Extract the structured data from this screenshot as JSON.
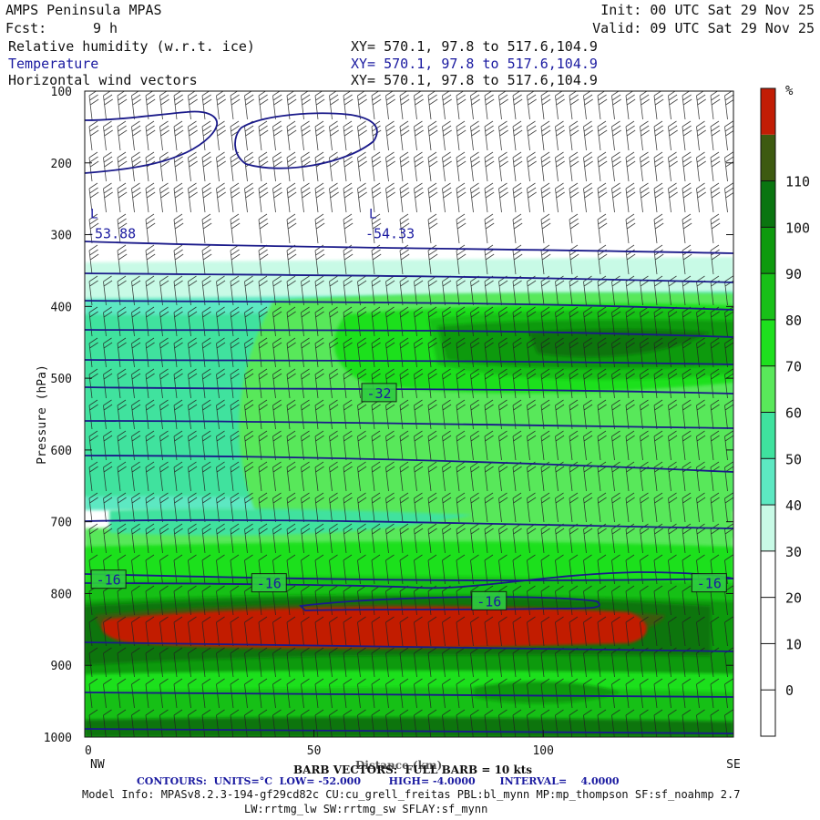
{
  "header": {
    "model": "AMPS Peninsula MPAS",
    "fcst_label": "Fcst:",
    "fcst_value": "9 h",
    "init": "Init: 00 UTC Sat 29 Nov 25",
    "valid": "Valid: 09 UTC Sat 29 Nov 25",
    "fields": [
      {
        "name": "Relative humidity (w.r.t. ice)",
        "xy": "XY= 570.1, 97.8 to 517.6,104.9"
      },
      {
        "name": "Temperature",
        "xy": "XY= 570.1, 97.8 to 517.6,104.9"
      },
      {
        "name": "Horizontal wind vectors",
        "xy": "XY= 570.1, 97.8 to 517.6,104.9"
      }
    ]
  },
  "footer": {
    "barb_note": "BARB VECTORS:  FULL BARB = 10 kts",
    "distance_label": "Distance (km)",
    "contours": "CONTOURS:  UNITS=°C  LOW= -52.000        HIGH= -4.0000       INTERVAL=    4.0000",
    "model_info": "Model Info: MPASv8.2.3-194-gf29cd82c CU:cu_grell_freitas PBL:bl_mynn MP:mp_thompson SF:sf_noahmp 2.7",
    "model_info2": "LW:rrtmg_lw SW:rrtmg_sw SFLAY:sf_mynn"
  },
  "colors": {
    "c0": "#ffffff",
    "c30": "#c8fae6",
    "c40": "#5de8c2",
    "c50": "#3fe29e",
    "c60": "#59e85a",
    "c70": "#1ee01e",
    "c80": "#18c018",
    "c90": "#0e9a0e",
    "c100": "#0a7510",
    "c110": "#3d5a10",
    "c_max": "#c21d05",
    "contour": "#1a1a8a",
    "label": "#1a1aa0"
  },
  "chart_data": {
    "type": "heatmap",
    "description_fields": [
      "relative humidity (filled)",
      "temperature (contours)",
      "wind barbs"
    ],
    "ylabel": "Pressure (hPa)",
    "xlabel": "Distance (km)",
    "x_ticks": [
      0,
      50,
      100
    ],
    "x_end_labels": {
      "left": "NW",
      "right": "SE"
    },
    "y_ticks": [
      100,
      200,
      300,
      400,
      500,
      600,
      700,
      800,
      900,
      1000
    ],
    "xlim": [
      0,
      141.5
    ],
    "ylim": [
      1000,
      100
    ],
    "colorbar": {
      "unit": "%",
      "ticks": [
        0,
        10,
        20,
        30,
        40,
        50,
        60,
        70,
        80,
        90,
        100,
        110
      ],
      "levels": [
        {
          "min": -10,
          "max": 30,
          "color": "#ffffff"
        },
        {
          "min": 30,
          "max": 40,
          "color": "#c8fae6"
        },
        {
          "min": 40,
          "max": 50,
          "color": "#5de8c2"
        },
        {
          "min": 50,
          "max": 60,
          "color": "#3fe29e"
        },
        {
          "min": 60,
          "max": 70,
          "color": "#59e85a"
        },
        {
          "min": 70,
          "max": 80,
          "color": "#1ee01e"
        },
        {
          "min": 80,
          "max": 90,
          "color": "#18c018"
        },
        {
          "min": 90,
          "max": 100,
          "color": "#0e9a0e"
        },
        {
          "min": 100,
          "max": 110,
          "color": "#0a7510"
        },
        {
          "min": 110,
          "max": 120,
          "color": "#3d5a10"
        },
        {
          "min": 120,
          "max": 130,
          "color": "#c21d05"
        }
      ]
    },
    "rh_regions": [
      {
        "name": "dry-upper",
        "p_top": 100,
        "p_bottom": 290,
        "rh": "<30"
      },
      {
        "name": "moist-layer-300",
        "p_top": 290,
        "p_bottom": 330,
        "rh": "30-40"
      },
      {
        "name": "moist-mid",
        "p_top": 330,
        "p_bottom": 760,
        "rh": "40-80"
      },
      {
        "name": "max-core",
        "p_top": 440,
        "p_bottom": 490,
        "x_start": 75,
        "x_end": 141,
        "rh": "90-100"
      },
      {
        "name": "saturated-band",
        "p_top": 810,
        "p_bottom": 890,
        "x_start": 5,
        "x_end": 120,
        "rh": ">110"
      },
      {
        "name": "lower-moist",
        "p_top": 890,
        "p_bottom": 1000,
        "rh": "60-100"
      }
    ],
    "temperature_contours": [
      {
        "label": "-16",
        "x": 5,
        "p": 780
      },
      {
        "label": "-16",
        "x": 40,
        "p": 785
      },
      {
        "label": "-16",
        "x": 88,
        "p": 810
      },
      {
        "label": "-16",
        "x": 136,
        "p": 785
      },
      {
        "label": "-32",
        "x": 64,
        "p": 520
      }
    ],
    "temperature_lows": [
      {
        "label": "L",
        "value": "-53.88",
        "x": 0,
        "p": 300
      },
      {
        "label": "L",
        "value": "-54.33",
        "x": 62,
        "p": 300
      }
    ]
  }
}
